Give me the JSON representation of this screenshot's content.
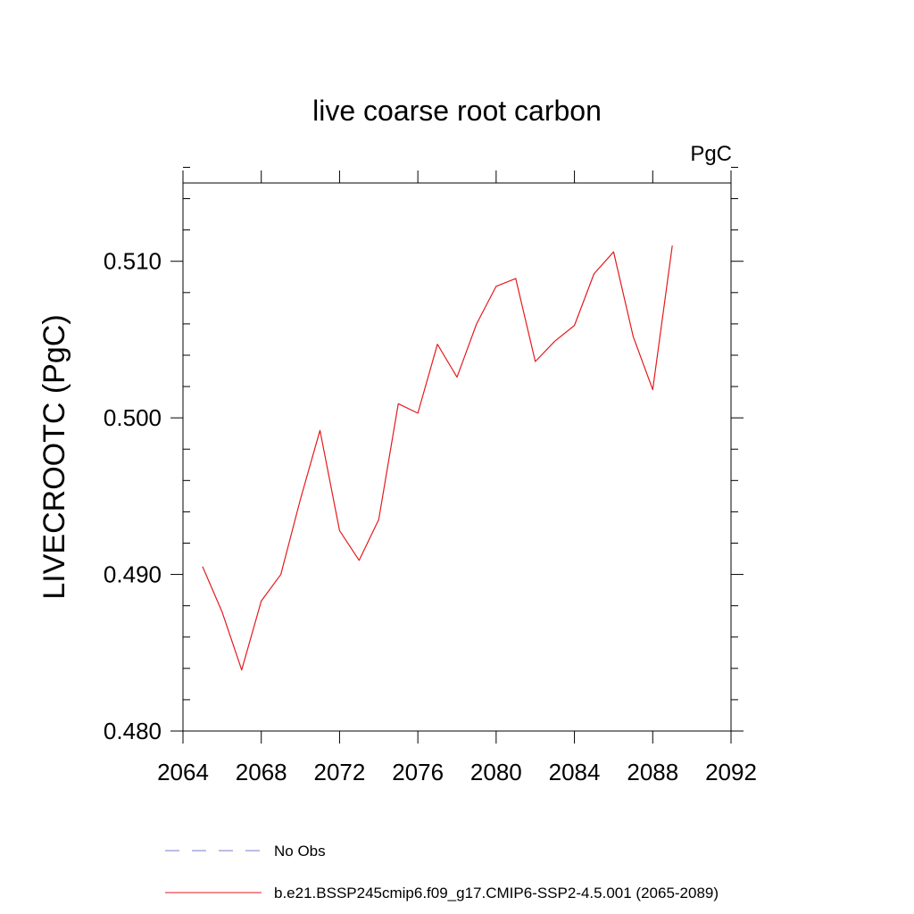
{
  "chart_data": {
    "type": "line",
    "title": "live coarse root carbon",
    "units_label": "PgC",
    "ylabel": "LIVECROOTC  (PgC)",
    "xlabel": "",
    "xlim": [
      2064,
      2092
    ],
    "ylim": [
      0.48,
      0.515
    ],
    "x_ticks": [
      2064,
      2068,
      2072,
      2076,
      2080,
      2084,
      2088,
      2092
    ],
    "x_tick_labels": [
      "2064",
      "2068",
      "2072",
      "2076",
      "2080",
      "2084",
      "2088",
      "2092"
    ],
    "y_ticks": [
      0.48,
      0.49,
      0.5,
      0.51
    ],
    "y_tick_labels": [
      "0.480",
      "0.490",
      "0.500",
      "0.510"
    ],
    "grid": false,
    "legend_placement": "bottom",
    "series": [
      {
        "name": "b.e21.BSSP245cmip6.f09_g17.CMIP6-SSP2-4.5.001 (2065-2089)",
        "color": "#e41a1c",
        "style": "solid",
        "x": [
          2065,
          2066,
          2067,
          2068,
          2069,
          2070,
          2071,
          2072,
          2073,
          2074,
          2075,
          2076,
          2077,
          2078,
          2079,
          2080,
          2081,
          2082,
          2083,
          2084,
          2085,
          2086,
          2087,
          2088,
          2089
        ],
        "y": [
          0.4905,
          0.4876,
          0.4839,
          0.4883,
          0.49,
          0.4948,
          0.4992,
          0.4928,
          0.4909,
          0.4935,
          0.5009,
          0.5003,
          0.5047,
          0.5026,
          0.506,
          0.5084,
          0.5089,
          0.5036,
          0.5049,
          0.5059,
          0.5092,
          0.5106,
          0.5052,
          0.5018,
          0.511
        ]
      }
    ],
    "legend": [
      {
        "label": "No Obs",
        "color": "#7b7bc8",
        "style": "dashed"
      },
      {
        "label": "b.e21.BSSP245cmip6.f09_g17.CMIP6-SSP2-4.5.001 (2065-2089)",
        "color": "#e41a1c",
        "style": "solid"
      }
    ]
  }
}
